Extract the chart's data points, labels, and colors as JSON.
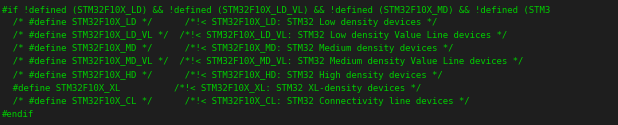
{
  "background_color": "#1e1e1e",
  "text_color": "#00cc00",
  "lines": [
    {
      "text": "#if !defined (STM32F10X_LD) && !defined (STM32F10X_LD_VL) && !defined (STM32F10X_MD) && !defined (STM3",
      "bold": false
    },
    {
      "text": "  /* #define STM32F10X_LD */      /*!< STM32F10X_LD: STM32 Low density devices */",
      "bold": false
    },
    {
      "text": "  /* #define STM32F10X_LD_VL */  /*!< STM32F10X_LD_VL: STM32 Low density Value Line devices */",
      "bold": false
    },
    {
      "text": "  /* #define STM32F10X_MD */      /*!< STM32F10X_MD: STM32 Medium density devices */",
      "bold": false
    },
    {
      "text": "  /* #define STM32F10X_MD_VL */  /*!< STM32F10X_MD_VL: STM32 Medium density Value Line devices */",
      "bold": false
    },
    {
      "text": "  /* #define STM32F10X_HD */      /*!< STM32F10X_HD: STM32 High density devices */",
      "bold": false
    },
    {
      "text": "  #define STM32F10X_XL          /*!< STM32F10X_XL: STM32 XL-density devices */",
      "bold": false
    },
    {
      "text": "  /* #define STM32F10X_CL */      /*!< STM32F10X_CL: STM32 Connectivity line devices */",
      "bold": false
    },
    {
      "text": "#endif",
      "bold": false
    }
  ],
  "font_family": "monospace",
  "font_size": 6.5,
  "fig_width": 6.18,
  "fig_height": 1.25,
  "dpi": 100
}
